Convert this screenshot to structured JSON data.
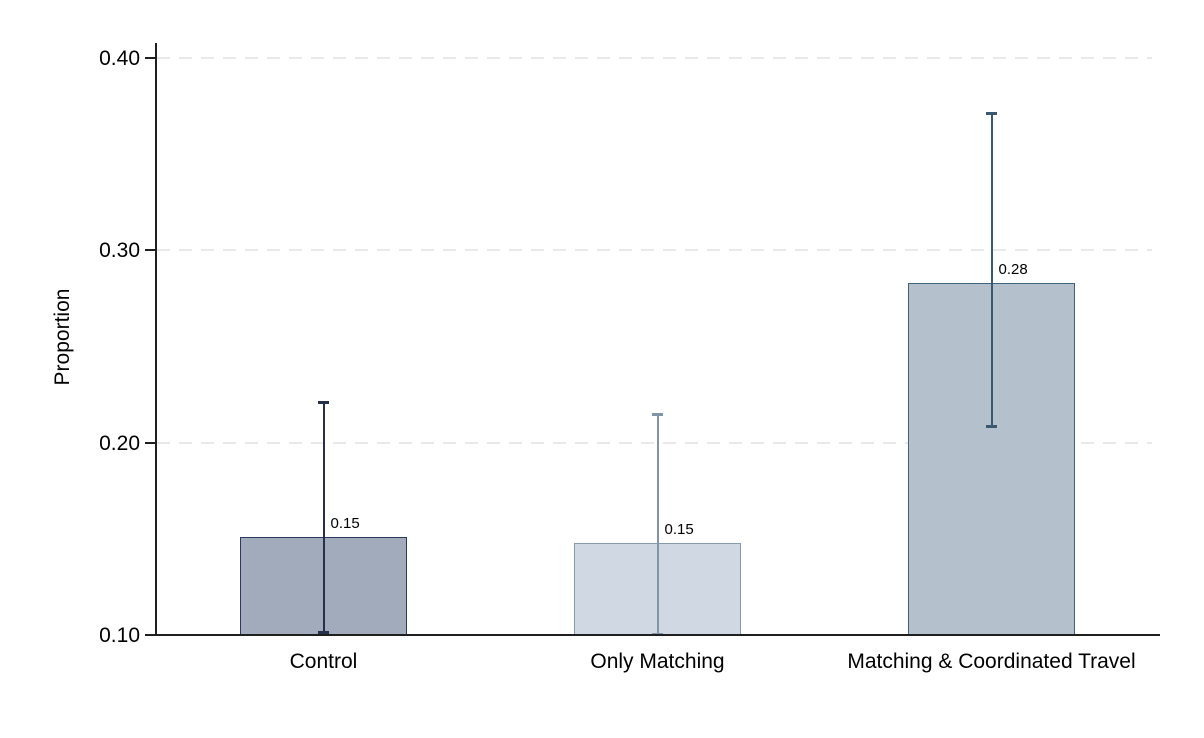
{
  "chart_data": {
    "type": "bar",
    "title": "",
    "xlabel": "",
    "ylabel": "Proportion",
    "ylim": [
      0.1,
      0.4
    ],
    "grid": "horizontal dashed gridlines at 0.20, 0.30, 0.40",
    "legend": "none",
    "yticks": [
      {
        "value": 0.1,
        "label": "0.10"
      },
      {
        "value": 0.2,
        "label": "0.20"
      },
      {
        "value": 0.3,
        "label": "0.30"
      },
      {
        "value": 0.4,
        "label": "0.40"
      }
    ],
    "categories": [
      "Control",
      "Only Matching",
      "Matching & Coordinated Travel"
    ],
    "bars": [
      {
        "category": "Control",
        "value": 0.151,
        "value_label": "0.15",
        "ci_low": 0.101,
        "ci_high": 0.221,
        "fill": "#a2abbc",
        "border": "#2b3a5c",
        "error_color": "#25304d"
      },
      {
        "category": "Only Matching",
        "value": 0.148,
        "value_label": "0.15",
        "ci_low": 0.1,
        "ci_high": 0.215,
        "fill": "#cfd8e3",
        "border": "#8799ad",
        "error_color": "#8095aa"
      },
      {
        "category": "Matching & Coordinated Travel",
        "value": 0.283,
        "value_label": "0.28",
        "ci_low": 0.208,
        "ci_high": 0.371,
        "fill": "#b4c1cc",
        "border": "#40627c",
        "error_color": "#3a586f"
      }
    ]
  },
  "colors": {
    "background": "#ffffff",
    "gridline": "#e9e9e9",
    "axis": "#1f1f1f",
    "text": "#000000"
  }
}
